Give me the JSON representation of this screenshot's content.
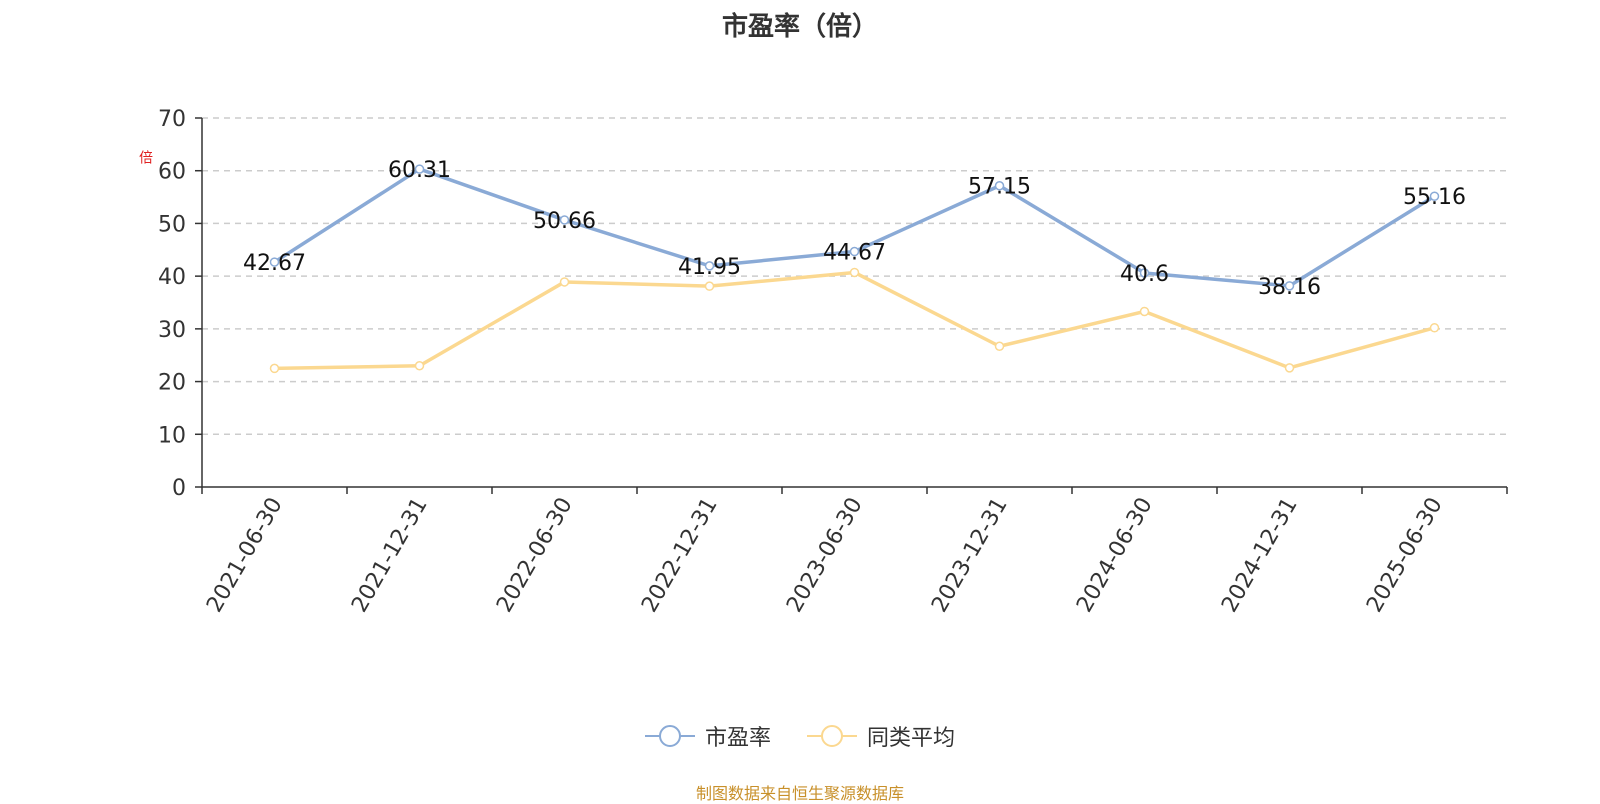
{
  "title": "市盈率（倍）",
  "unit": "倍",
  "source": "制图数据来自恒生聚源数据库",
  "colors": {
    "pe": "#8aaad6",
    "peer": "#fbd890",
    "axis": "#333333",
    "grid": "#cccccc",
    "unit": "#e02020",
    "source": "#c8902a"
  },
  "chart_data": {
    "type": "line",
    "categories": [
      "2021-06-30",
      "2021-12-31",
      "2022-06-30",
      "2022-12-31",
      "2023-06-30",
      "2023-12-31",
      "2024-06-30",
      "2024-12-31",
      "2025-06-30"
    ],
    "series": [
      {
        "name": "市盈率",
        "values": [
          42.67,
          60.31,
          50.66,
          41.95,
          44.67,
          57.15,
          40.6,
          38.16,
          55.16
        ],
        "labels": [
          "42.67",
          "60.31",
          "50.66",
          "41.95",
          "44.67",
          "57.15",
          "40.6",
          "38.16",
          "55.16"
        ]
      },
      {
        "name": "同类平均",
        "values": [
          22.5,
          23.0,
          38.9,
          38.1,
          40.7,
          26.7,
          33.3,
          22.6,
          30.2
        ]
      }
    ],
    "ylim": [
      0,
      70
    ],
    "yticks": [
      0,
      10,
      20,
      30,
      40,
      50,
      60,
      70
    ],
    "grid": true,
    "legend": "bottom-center"
  }
}
